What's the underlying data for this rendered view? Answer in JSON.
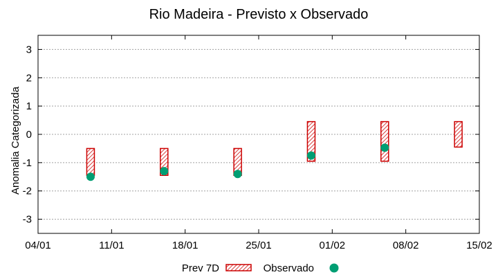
{
  "chart_data": {
    "type": "floating-bar-scatter",
    "title": "Rio Madeira - Previsto x Observado",
    "xlabel": "",
    "ylabel": "Anomalia Categorizada",
    "ylim": [
      -3.5,
      3.5
    ],
    "yticks": [
      -3,
      -2,
      -1,
      0,
      1,
      2,
      3
    ],
    "xlim_days": [
      0,
      42
    ],
    "xticks": [
      {
        "day": 0,
        "label": "04/01"
      },
      {
        "day": 7,
        "label": "11/01"
      },
      {
        "day": 14,
        "label": "18/01"
      },
      {
        "day": 21,
        "label": "25/01"
      },
      {
        "day": 28,
        "label": "01/02"
      },
      {
        "day": 35,
        "label": "08/02"
      },
      {
        "day": 42,
        "label": "15/02"
      }
    ],
    "grid": true,
    "legend_position": "bottom",
    "series": [
      {
        "name": "Prev 7D",
        "kind": "range-bar",
        "color": "#cc0000",
        "points": [
          {
            "day": 5,
            "low": -1.45,
            "high": -0.5
          },
          {
            "day": 12,
            "low": -1.45,
            "high": -0.5
          },
          {
            "day": 19,
            "low": -1.45,
            "high": -0.5
          },
          {
            "day": 26,
            "low": -0.95,
            "high": 0.45
          },
          {
            "day": 33,
            "low": -0.95,
            "high": 0.45
          },
          {
            "day": 40,
            "low": -0.45,
            "high": 0.45
          }
        ]
      },
      {
        "name": "Observado",
        "kind": "point",
        "color": "#009e73",
        "points": [
          {
            "day": 5,
            "value": -1.5
          },
          {
            "day": 12,
            "value": -1.3
          },
          {
            "day": 19,
            "value": -1.4
          },
          {
            "day": 26,
            "value": -0.75
          },
          {
            "day": 33,
            "value": -0.47
          }
        ]
      }
    ]
  }
}
